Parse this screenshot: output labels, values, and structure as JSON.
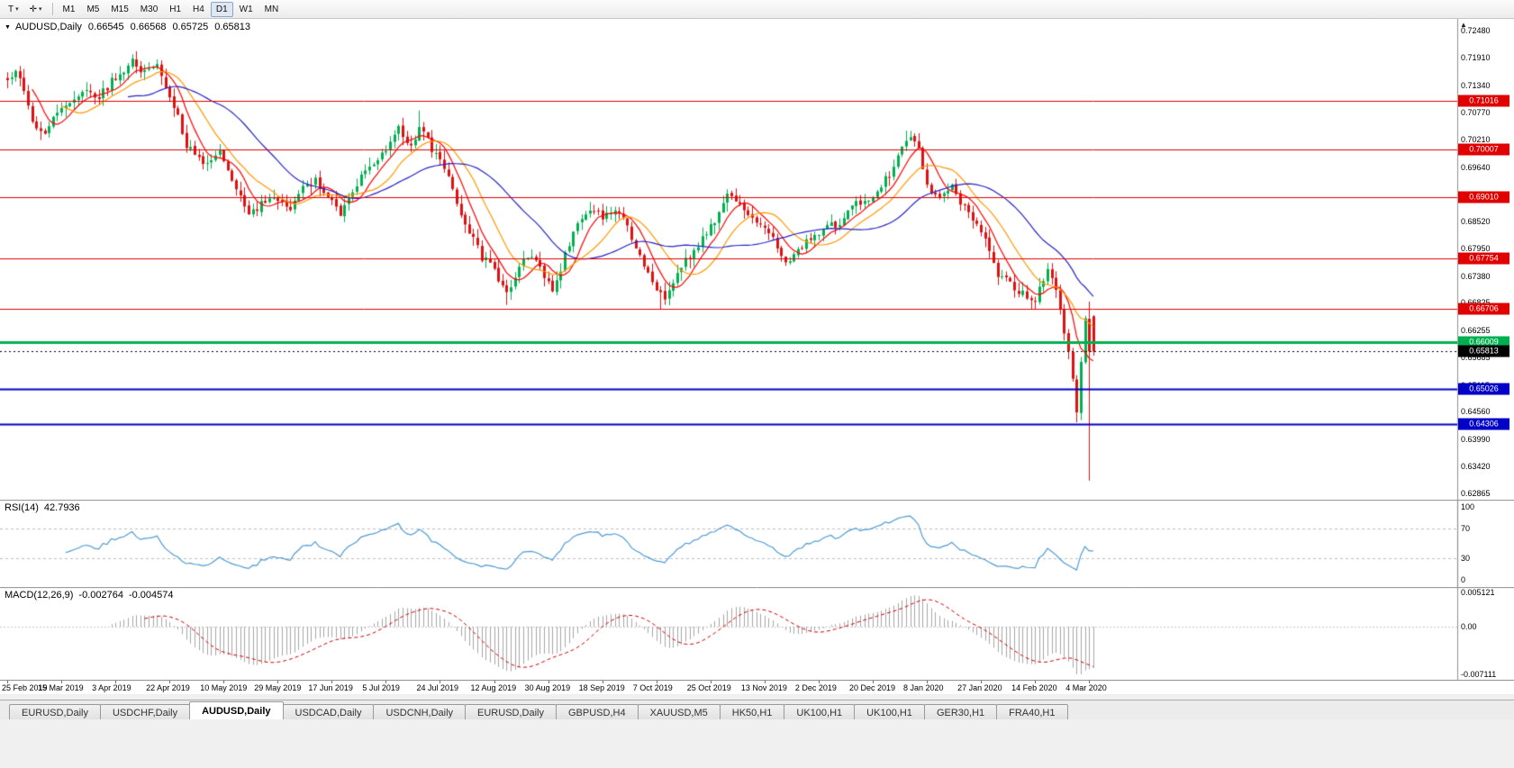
{
  "icons": {
    "caret_down": "▾",
    "collapse_triangle": "▼",
    "scroll_up_triangle": "▲",
    "crosshair": "✛"
  },
  "toolbar": {
    "tool_button_label": "T",
    "timeframes": [
      "M1",
      "M5",
      "M15",
      "M30",
      "H1",
      "H4",
      "D1",
      "W1",
      "MN"
    ],
    "active_timeframe": "D1"
  },
  "chart_data": {
    "type": "candlestick",
    "symbol": "AUDUSD",
    "timeframe": "Daily",
    "quote": {
      "symbol_label": "AUDUSD,Daily",
      "open": "0.66545",
      "high": "0.66568",
      "low": "0.65725",
      "close": "0.65813"
    },
    "n_candles": 262,
    "noise_seed": 9,
    "close_keypoints": [
      [
        0,
        0.7148
      ],
      [
        2,
        0.7168
      ],
      [
        6,
        0.7062
      ],
      [
        9,
        0.7032
      ],
      [
        13,
        0.7092
      ],
      [
        18,
        0.7122
      ],
      [
        22,
        0.7112
      ],
      [
        26,
        0.7152
      ],
      [
        30,
        0.7186
      ],
      [
        33,
        0.7162
      ],
      [
        36,
        0.718
      ],
      [
        40,
        0.7092
      ],
      [
        43,
        0.7012
      ],
      [
        47,
        0.6968
      ],
      [
        51,
        0.6996
      ],
      [
        54,
        0.6942
      ],
      [
        58,
        0.6868
      ],
      [
        62,
        0.6896
      ],
      [
        65,
        0.6902
      ],
      [
        68,
        0.6874
      ],
      [
        71,
        0.6918
      ],
      [
        74,
        0.6936
      ],
      [
        77,
        0.6902
      ],
      [
        80,
        0.6868
      ],
      [
        83,
        0.692
      ],
      [
        87,
        0.6966
      ],
      [
        91,
        0.7006
      ],
      [
        94,
        0.7042
      ],
      [
        97,
        0.7002
      ],
      [
        99,
        0.7042
      ],
      [
        103,
        0.6992
      ],
      [
        106,
        0.6948
      ],
      [
        108,
        0.6888
      ],
      [
        111,
        0.6832
      ],
      [
        114,
        0.6778
      ],
      [
        117,
        0.6752
      ],
      [
        120,
        0.6702
      ],
      [
        123,
        0.6764
      ],
      [
        126,
        0.678
      ],
      [
        129,
        0.6734
      ],
      [
        131,
        0.6704
      ],
      [
        134,
        0.6782
      ],
      [
        137,
        0.6856
      ],
      [
        140,
        0.6882
      ],
      [
        143,
        0.6864
      ],
      [
        146,
        0.688
      ],
      [
        149,
        0.6842
      ],
      [
        152,
        0.6782
      ],
      [
        155,
        0.6722
      ],
      [
        158,
        0.6692
      ],
      [
        161,
        0.6742
      ],
      [
        164,
        0.678
      ],
      [
        167,
        0.6812
      ],
      [
        170,
        0.685
      ],
      [
        173,
        0.6916
      ],
      [
        176,
        0.6892
      ],
      [
        179,
        0.6858
      ],
      [
        182,
        0.6842
      ],
      [
        185,
        0.6796
      ],
      [
        188,
        0.6762
      ],
      [
        191,
        0.6802
      ],
      [
        194,
        0.6816
      ],
      [
        197,
        0.6852
      ],
      [
        200,
        0.6842
      ],
      [
        203,
        0.6882
      ],
      [
        206,
        0.6896
      ],
      [
        209,
        0.6906
      ],
      [
        212,
        0.6952
      ],
      [
        215,
        0.7002
      ],
      [
        217,
        0.703
      ],
      [
        219,
        0.6996
      ],
      [
        221,
        0.6926
      ],
      [
        224,
        0.6902
      ],
      [
        227,
        0.6922
      ],
      [
        230,
        0.6882
      ],
      [
        233,
        0.6852
      ],
      [
        236,
        0.6792
      ],
      [
        238,
        0.6742
      ],
      [
        241,
        0.6722
      ],
      [
        244,
        0.6702
      ],
      [
        247,
        0.6688
      ],
      [
        250,
        0.6746
      ],
      [
        252,
        0.6712
      ],
      [
        254,
        0.6622
      ],
      [
        256,
        0.6528
      ],
      [
        257,
        0.6452
      ],
      [
        258,
        0.6562
      ],
      [
        259,
        0.6642
      ],
      [
        260,
        0.6585
      ],
      [
        261,
        0.65813
      ]
    ],
    "wick_overrides": {
      "31": {
        "high": 0.7205
      },
      "99": {
        "high": 0.7082
      },
      "120": {
        "low": 0.6678
      },
      "157": {
        "low": 0.667
      },
      "216": {
        "high": 0.704
      },
      "257": {
        "low": 0.6434
      },
      "260": {
        "high": 0.6685,
        "low": 0.6313
      },
      "261": {
        "open": 0.66545,
        "high": 0.66568,
        "low": 0.65725,
        "close": 0.65813
      }
    },
    "candle_colors": {
      "up": "#00B050",
      "down": "#E01010"
    },
    "moving_averages": [
      {
        "name": "ma-fast",
        "period": 7,
        "color": "#FF0000"
      },
      {
        "name": "ma-mid",
        "period": 14,
        "color": "#FF9900"
      },
      {
        "name": "ma-slow",
        "period": 30,
        "color": "#2525C8"
      }
    ],
    "price_axis_ticks": [
      "0.72480",
      "0.71910",
      "0.71340",
      "0.70770",
      "0.70210",
      "0.69640",
      "0.69070",
      "0.68520",
      "0.67950",
      "0.67380",
      "0.66825",
      "0.66255",
      "0.65685",
      "0.65115",
      "0.64560",
      "0.63990",
      "0.63420",
      "0.62865"
    ],
    "hlines": [
      {
        "value": 0.71016,
        "label": "0.71016",
        "color": "#E00000",
        "width": 1
      },
      {
        "value": 0.70007,
        "label": "0.70007",
        "color": "#E00000",
        "width": 1
      },
      {
        "value": 0.6901,
        "label": "0.69010",
        "color": "#E00000",
        "width": 1
      },
      {
        "value": 0.67754,
        "label": "0.67754",
        "color": "#E00000",
        "width": 1
      },
      {
        "value": 0.66706,
        "label": "0.66706",
        "color": "#E00000",
        "width": 1
      },
      {
        "value": 0.66009,
        "label": "0.66009",
        "color": "#00B050",
        "width": 3
      },
      {
        "value": 0.65026,
        "label": "0.65026",
        "color": "#0000C8",
        "width": 2
      },
      {
        "value": 0.64306,
        "label": "0.64306",
        "color": "#0000C8",
        "width": 2
      }
    ],
    "current_price_marker": {
      "value": 0.65813,
      "label": "0.65813",
      "color": "#000000"
    },
    "x_axis_dates": [
      "25 Feb 2019",
      "15 Mar 2019",
      "3 Apr 2019",
      "22 Apr 2019",
      "10 May 2019",
      "29 May 2019",
      "17 Jun 2019",
      "5 Jul 2019",
      "24 Jul 2019",
      "12 Aug 2019",
      "30 Aug 2019",
      "18 Sep 2019",
      "7 Oct 2019",
      "25 Oct 2019",
      "13 Nov 2019",
      "2 Dec 2019",
      "20 Dec 2019",
      "8 Jan 2020",
      "27 Jan 2020",
      "14 Feb 2020",
      "4 Mar 2020"
    ],
    "indicators": {
      "rsi": {
        "label": "RSI(14)",
        "period": 14,
        "value": "42.7936",
        "levels": [
          "100",
          "70",
          "30",
          "0"
        ],
        "line_color": "#4F9BD5"
      },
      "macd": {
        "label": "MACD(12,26,9)",
        "fast": 12,
        "slow": 26,
        "signal_period": 9,
        "main_value": "-0.002764",
        "signal_value": "-0.004574",
        "axis_labels": [
          {
            "text": "0.005121",
            "value": 0.005121
          },
          {
            "text": "0.00",
            "value": 0
          },
          {
            "text": "-0.007111",
            "value": -0.007111
          }
        ],
        "hist_color": "#A6A6A6",
        "signal_color": "#D00000"
      }
    }
  },
  "tabs": {
    "active_index": 2,
    "items": [
      "EURUSD,Daily",
      "USDCHF,Daily",
      "AUDUSD,Daily",
      "USDCAD,Daily",
      "USDCNH,Daily",
      "EURUSD,Daily",
      "GBPUSD,H4",
      "XAUUSD,M5",
      "HK50,H1",
      "UK100,H1",
      "UK100,H1",
      "GER30,H1",
      "FRA40,H1"
    ]
  }
}
